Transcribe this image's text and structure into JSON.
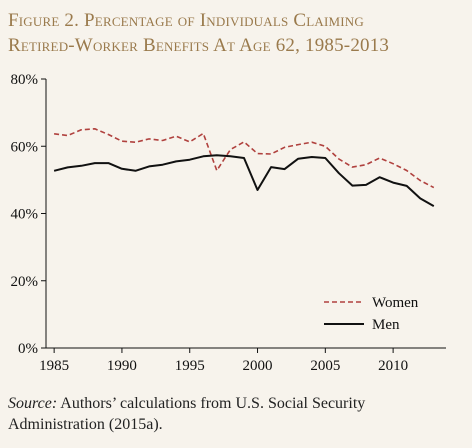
{
  "header": {
    "title_line1": "Figure 2. Percentage of Individuals Claiming",
    "title_line2": "Retired-Worker Benefits At Age 62, 1985-2013"
  },
  "footer": {
    "source_label": "Source:",
    "source_text": " Authors’ calculations from U.S. Social Security Administration (2015a)."
  },
  "chart_data": {
    "type": "line",
    "x": [
      1985,
      1986,
      1987,
      1988,
      1989,
      1990,
      1991,
      1992,
      1993,
      1994,
      1995,
      1996,
      1997,
      1998,
      1999,
      2000,
      2001,
      2002,
      2003,
      2004,
      2005,
      2006,
      2007,
      2008,
      2009,
      2010,
      2011,
      2012,
      2013
    ],
    "series": [
      {
        "name": "Women",
        "color": "#b0413e",
        "dash": "dashed",
        "values": [
          63.7,
          63.2,
          64.9,
          65.2,
          63.5,
          61.5,
          61.2,
          62.2,
          61.7,
          63.0,
          61.3,
          63.8,
          52.8,
          59.0,
          61.3,
          57.8,
          57.7,
          59.7,
          60.5,
          61.2,
          60.0,
          56.2,
          53.8,
          54.5,
          56.5,
          54.8,
          52.8,
          49.8,
          47.7
        ]
      },
      {
        "name": "Men",
        "color": "#111111",
        "dash": "solid",
        "values": [
          52.7,
          53.7,
          54.2,
          55.0,
          55.0,
          53.3,
          52.7,
          54.0,
          54.5,
          55.5,
          56.0,
          57.0,
          57.3,
          57.0,
          56.5,
          47.0,
          53.8,
          53.2,
          56.3,
          56.8,
          56.5,
          52.0,
          48.3,
          48.5,
          50.8,
          49.2,
          48.2,
          44.5,
          42.2
        ]
      }
    ],
    "yticks": [
      "0%",
      "20%",
      "40%",
      "60%",
      "80%"
    ],
    "xticks": [
      "1985",
      "1990",
      "1995",
      "2000",
      "2005",
      "2010"
    ],
    "ylim": [
      0,
      80
    ],
    "xlim": [
      1985,
      2013
    ],
    "legend": "bottom-right",
    "grid": false
  }
}
